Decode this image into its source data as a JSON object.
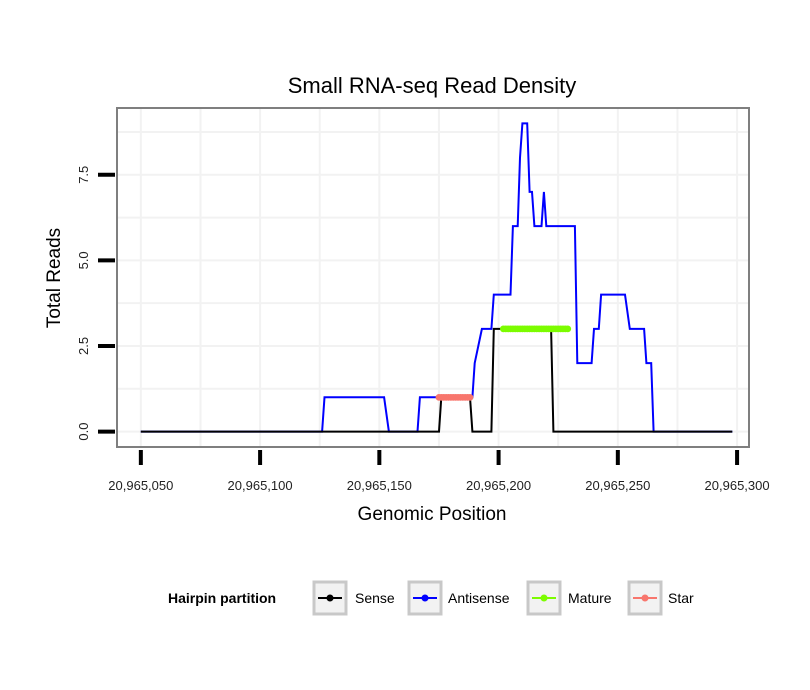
{
  "chart_data": {
    "type": "line",
    "title": "Small RNA-seq Read Density",
    "xlabel": "Genomic Position",
    "ylabel": "Total Reads",
    "xlim": [
      20965040,
      20965305
    ],
    "ylim": [
      -0.45,
      9.45
    ],
    "x_ticks": [
      20965050,
      20965100,
      20965150,
      20965200,
      20965250,
      20965300
    ],
    "x_tick_labels": [
      "20,965,050",
      "20,965,100",
      "20,965,150",
      "20,965,200",
      "20,965,250",
      "20,965,300"
    ],
    "y_ticks": [
      0,
      2.5,
      5,
      7.5
    ],
    "y_tick_labels": [
      "0.0",
      "2.5",
      "5.0",
      "7.5"
    ],
    "grid": true,
    "legend": {
      "title": "Hairpin partition",
      "position": "bottom",
      "entries": [
        "Sense",
        "Antisense",
        "Mature",
        "Star"
      ]
    },
    "series": [
      {
        "name": "Antisense",
        "color": "#0000ff",
        "points": [
          [
            20965050,
            0
          ],
          [
            20965126,
            0
          ],
          [
            20965127,
            1
          ],
          [
            20965152,
            1
          ],
          [
            20965154,
            0
          ],
          [
            20965166,
            0
          ],
          [
            20965167,
            1
          ],
          [
            20965176,
            1
          ],
          [
            20965189,
            1
          ],
          [
            20965190,
            2
          ],
          [
            20965193,
            3
          ],
          [
            20965197,
            3
          ],
          [
            20965198,
            4
          ],
          [
            20965205,
            4
          ],
          [
            20965206,
            6
          ],
          [
            20965208,
            6
          ],
          [
            20965209,
            8
          ],
          [
            20965210,
            9
          ],
          [
            20965212,
            9
          ],
          [
            20965213,
            7
          ],
          [
            20965214,
            7
          ],
          [
            20965215,
            6
          ],
          [
            20965218,
            6
          ],
          [
            20965219,
            7
          ],
          [
            20965220,
            6
          ],
          [
            20965232,
            6
          ],
          [
            20965233,
            2
          ],
          [
            20965239,
            2
          ],
          [
            20965240,
            3
          ],
          [
            20965242,
            3
          ],
          [
            20965243,
            4
          ],
          [
            20965253,
            4
          ],
          [
            20965255,
            3
          ],
          [
            20965261,
            3
          ],
          [
            20965262,
            2
          ],
          [
            20965264,
            2
          ],
          [
            20965265,
            0
          ],
          [
            20965298,
            0
          ]
        ]
      },
      {
        "name": "Sense",
        "color": "#000000",
        "points": [
          [
            20965050,
            0
          ],
          [
            20965175,
            0
          ],
          [
            20965176,
            1
          ],
          [
            20965188,
            1
          ],
          [
            20965189,
            0
          ],
          [
            20965197,
            0
          ],
          [
            20965198,
            3
          ],
          [
            20965222,
            3
          ],
          [
            20965223,
            0
          ],
          [
            20965298,
            0
          ]
        ]
      },
      {
        "name": "Star",
        "color": "#f8766d",
        "points": [
          [
            20965175,
            1
          ],
          [
            20965176,
            1
          ],
          [
            20965177,
            1
          ],
          [
            20965178,
            1
          ],
          [
            20965179,
            1
          ],
          [
            20965180,
            1
          ],
          [
            20965181,
            1
          ],
          [
            20965182,
            1
          ],
          [
            20965183,
            1
          ],
          [
            20965184,
            1
          ],
          [
            20965185,
            1
          ],
          [
            20965186,
            1
          ],
          [
            20965187,
            1
          ],
          [
            20965188,
            1
          ]
        ]
      },
      {
        "name": "Mature",
        "color": "#7cfc00",
        "points": [
          [
            20965202,
            3
          ],
          [
            20965203,
            3
          ],
          [
            20965204,
            3
          ],
          [
            20965205,
            3
          ],
          [
            20965206,
            3
          ],
          [
            20965207,
            3
          ],
          [
            20965208,
            3
          ],
          [
            20965209,
            3
          ],
          [
            20965210,
            3
          ],
          [
            20965211,
            3
          ],
          [
            20965212,
            3
          ],
          [
            20965213,
            3
          ],
          [
            20965214,
            3
          ],
          [
            20965215,
            3
          ],
          [
            20965216,
            3
          ],
          [
            20965217,
            3
          ],
          [
            20965218,
            3
          ],
          [
            20965219,
            3
          ],
          [
            20965220,
            3
          ],
          [
            20965221,
            3
          ],
          [
            20965222,
            3
          ],
          [
            20965223,
            3
          ],
          [
            20965224,
            3
          ],
          [
            20965225,
            3
          ],
          [
            20965226,
            3
          ],
          [
            20965227,
            3
          ],
          [
            20965228,
            3
          ],
          [
            20965229,
            3
          ]
        ]
      }
    ]
  }
}
